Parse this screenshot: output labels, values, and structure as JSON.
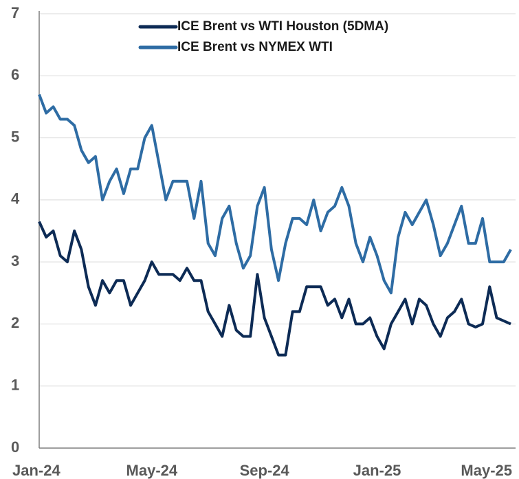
{
  "chart_data": {
    "type": "line",
    "categories": [
      "Jan-24",
      null,
      null,
      null,
      null,
      null,
      null,
      null,
      null,
      null,
      null,
      null,
      null,
      null,
      null,
      null,
      "May-24",
      null,
      null,
      null,
      null,
      null,
      null,
      null,
      null,
      null,
      null,
      null,
      null,
      null,
      null,
      null,
      "Sep-24",
      null,
      null,
      null,
      null,
      null,
      null,
      null,
      null,
      null,
      null,
      null,
      null,
      null,
      null,
      null,
      "Jan-25",
      null,
      null,
      null,
      null,
      null,
      null,
      null,
      null,
      null,
      null,
      null,
      null,
      null,
      null,
      null,
      "May-25",
      null,
      null,
      null
    ],
    "series": [
      {
        "name": "ICE Brent vs WTI Houston (5DMA)",
        "color": "#0d2b55",
        "values": [
          3.65,
          3.4,
          3.5,
          3.1,
          3.0,
          3.5,
          3.2,
          2.6,
          2.3,
          2.7,
          2.5,
          2.7,
          2.7,
          2.3,
          2.5,
          2.7,
          3.0,
          2.8,
          2.8,
          2.8,
          2.7,
          2.9,
          2.7,
          2.7,
          2.2,
          2.0,
          1.8,
          2.3,
          1.9,
          1.8,
          1.8,
          2.8,
          2.1,
          1.8,
          1.5,
          1.5,
          2.2,
          2.2,
          2.6,
          2.6,
          2.6,
          2.3,
          2.4,
          2.1,
          2.4,
          2.0,
          2.0,
          2.1,
          1.8,
          1.6,
          2.0,
          2.2,
          2.4,
          2.0,
          2.4,
          2.3,
          2.0,
          1.8,
          2.1,
          2.2,
          2.4,
          2.0,
          1.95,
          2.0,
          2.6,
          2.1,
          2.05,
          2.0
        ]
      },
      {
        "name": "ICE Brent vs NYMEX WTI",
        "color": "#2e6ca4",
        "values": [
          5.7,
          5.4,
          5.5,
          5.3,
          5.3,
          5.2,
          4.8,
          4.6,
          4.7,
          4.0,
          4.3,
          4.5,
          4.1,
          4.5,
          4.5,
          5.0,
          5.2,
          4.6,
          4.0,
          4.3,
          4.3,
          4.3,
          3.7,
          4.3,
          3.3,
          3.1,
          3.7,
          3.9,
          3.3,
          2.9,
          3.1,
          3.9,
          4.2,
          3.2,
          2.7,
          3.3,
          3.7,
          3.7,
          3.6,
          4.0,
          3.5,
          3.8,
          3.9,
          4.2,
          3.9,
          3.3,
          3.0,
          3.4,
          3.1,
          2.7,
          2.5,
          3.4,
          3.8,
          3.6,
          3.8,
          4.0,
          3.6,
          3.1,
          3.3,
          3.6,
          3.9,
          3.3,
          3.3,
          3.7,
          3.0,
          3.0,
          3.0,
          3.2
        ]
      }
    ],
    "ylim": [
      0,
      7
    ],
    "yticks": [
      0,
      1,
      2,
      3,
      4,
      5,
      6,
      7
    ],
    "grid": true,
    "legend": "top"
  }
}
